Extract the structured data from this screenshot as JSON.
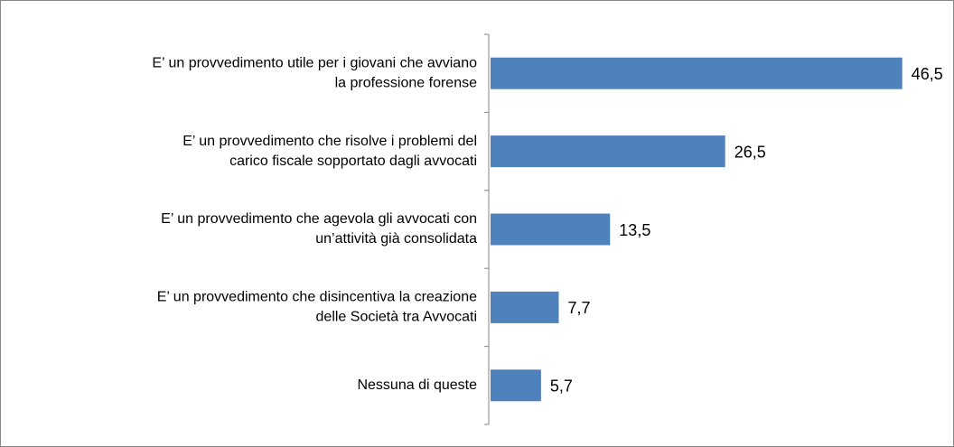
{
  "chart_data": {
    "type": "hbar",
    "categories": [
      [
        "E’ un provvedimento utile per i giovani che avviano",
        "la professione forense"
      ],
      [
        "E’ un provvedimento che risolve i problemi del",
        "carico fiscale sopportato dagli avvocati"
      ],
      [
        "E’ un provvedimento che agevola gli avvocati con",
        "un’attività già consolidata"
      ],
      [
        "E’ un provvedimento che disincentiva la creazione",
        "delle Società tra Avvocati"
      ],
      [
        "Nessuna di queste"
      ]
    ],
    "values": [
      46.5,
      26.5,
      13.5,
      7.7,
      5.7
    ],
    "value_labels": [
      "46,5",
      "26,5",
      "13,5",
      "7,7",
      "5,7"
    ],
    "color": "#4f81bd",
    "xlim": [
      0,
      50
    ]
  }
}
